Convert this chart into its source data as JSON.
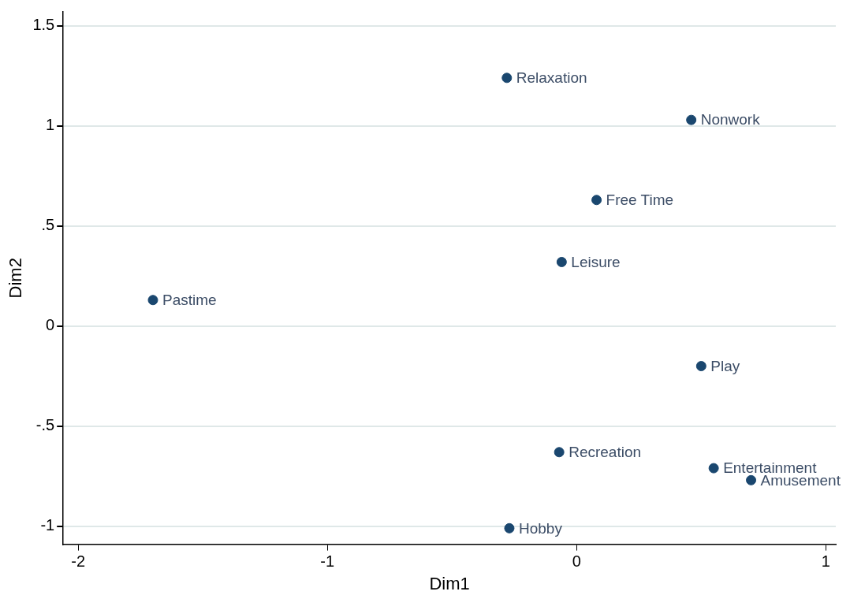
{
  "chart_data": {
    "type": "scatter",
    "xlabel": "Dim1",
    "ylabel": "Dim2",
    "x": [
      -0.28,
      0.46,
      0.08,
      -0.06,
      -1.7,
      0.5,
      -0.07,
      0.55,
      0.7,
      -0.27
    ],
    "values": [
      1.24,
      1.03,
      0.63,
      0.32,
      0.13,
      -0.2,
      -0.63,
      -0.71,
      -0.77,
      -1.01
    ],
    "color": "#1a476f",
    "marker": "circle",
    "grid": "y",
    "legend": false,
    "xlim": [
      -2.06,
      1.04
    ],
    "ylim": [
      -1.09,
      1.57
    ],
    "xticks": [
      -2,
      -1,
      0,
      1
    ],
    "yticks": [
      {
        "value": -1,
        "label": "-1"
      },
      {
        "value": -0.5,
        "label": "-.5"
      },
      {
        "value": 0,
        "label": "0"
      },
      {
        "value": 0.5,
        "label": ".5"
      },
      {
        "value": 1,
        "label": "1"
      },
      {
        "value": 1.5,
        "label": "1.5"
      }
    ],
    "annotations": [
      {
        "text": "Relaxation",
        "x": -0.28,
        "y": 1.24
      },
      {
        "text": "Nonwork",
        "x": 0.46,
        "y": 1.03
      },
      {
        "text": "Free Time",
        "x": 0.08,
        "y": 0.63
      },
      {
        "text": "Leisure",
        "x": -0.06,
        "y": 0.32
      },
      {
        "text": "Pastime",
        "x": -1.7,
        "y": 0.13
      },
      {
        "text": "Play",
        "x": 0.5,
        "y": -0.2
      },
      {
        "text": "Recreation",
        "x": -0.07,
        "y": -0.63
      },
      {
        "text": "Entertainment",
        "x": 0.55,
        "y": -0.71
      },
      {
        "text": "Amusement",
        "x": 0.7,
        "y": -0.77
      },
      {
        "text": "Hobby",
        "x": -0.27,
        "y": -1.01
      }
    ]
  }
}
